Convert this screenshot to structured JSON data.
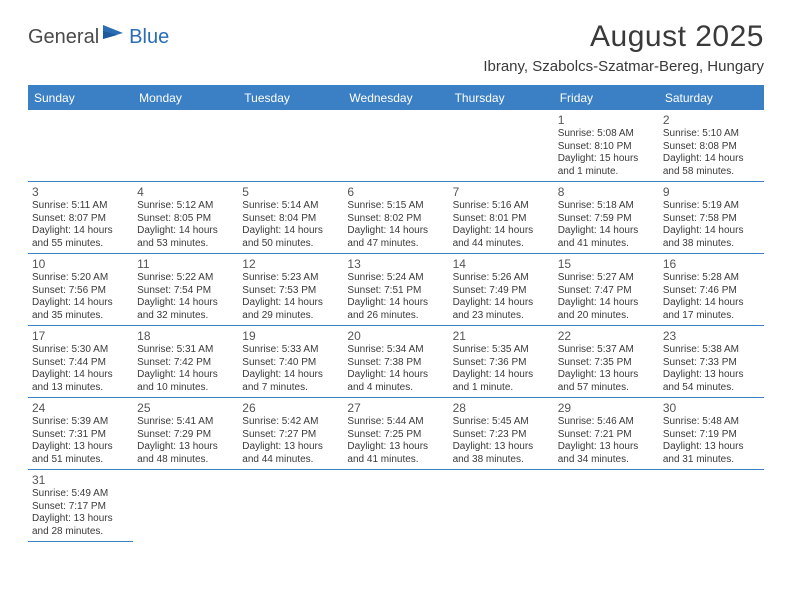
{
  "logo": {
    "general": "General",
    "blue": "Blue"
  },
  "title": "August 2025",
  "location": "Ibrany, Szabolcs-Szatmar-Bereg, Hungary",
  "colors": {
    "brand_blue": "#3b7fc4",
    "text_dark": "#3a3a3a",
    "logo_gray": "#4a4a4a",
    "logo_blue": "#2a6db5"
  },
  "day_headers": [
    "Sunday",
    "Monday",
    "Tuesday",
    "Wednesday",
    "Thursday",
    "Friday",
    "Saturday"
  ],
  "weeks": [
    [
      null,
      null,
      null,
      null,
      null,
      {
        "d": "1",
        "sr": "Sunrise: 5:08 AM",
        "ss": "Sunset: 8:10 PM",
        "dl": "Daylight: 15 hours and 1 minute."
      },
      {
        "d": "2",
        "sr": "Sunrise: 5:10 AM",
        "ss": "Sunset: 8:08 PM",
        "dl": "Daylight: 14 hours and 58 minutes."
      }
    ],
    [
      {
        "d": "3",
        "sr": "Sunrise: 5:11 AM",
        "ss": "Sunset: 8:07 PM",
        "dl": "Daylight: 14 hours and 55 minutes."
      },
      {
        "d": "4",
        "sr": "Sunrise: 5:12 AM",
        "ss": "Sunset: 8:05 PM",
        "dl": "Daylight: 14 hours and 53 minutes."
      },
      {
        "d": "5",
        "sr": "Sunrise: 5:14 AM",
        "ss": "Sunset: 8:04 PM",
        "dl": "Daylight: 14 hours and 50 minutes."
      },
      {
        "d": "6",
        "sr": "Sunrise: 5:15 AM",
        "ss": "Sunset: 8:02 PM",
        "dl": "Daylight: 14 hours and 47 minutes."
      },
      {
        "d": "7",
        "sr": "Sunrise: 5:16 AM",
        "ss": "Sunset: 8:01 PM",
        "dl": "Daylight: 14 hours and 44 minutes."
      },
      {
        "d": "8",
        "sr": "Sunrise: 5:18 AM",
        "ss": "Sunset: 7:59 PM",
        "dl": "Daylight: 14 hours and 41 minutes."
      },
      {
        "d": "9",
        "sr": "Sunrise: 5:19 AM",
        "ss": "Sunset: 7:58 PM",
        "dl": "Daylight: 14 hours and 38 minutes."
      }
    ],
    [
      {
        "d": "10",
        "sr": "Sunrise: 5:20 AM",
        "ss": "Sunset: 7:56 PM",
        "dl": "Daylight: 14 hours and 35 minutes."
      },
      {
        "d": "11",
        "sr": "Sunrise: 5:22 AM",
        "ss": "Sunset: 7:54 PM",
        "dl": "Daylight: 14 hours and 32 minutes."
      },
      {
        "d": "12",
        "sr": "Sunrise: 5:23 AM",
        "ss": "Sunset: 7:53 PM",
        "dl": "Daylight: 14 hours and 29 minutes."
      },
      {
        "d": "13",
        "sr": "Sunrise: 5:24 AM",
        "ss": "Sunset: 7:51 PM",
        "dl": "Daylight: 14 hours and 26 minutes."
      },
      {
        "d": "14",
        "sr": "Sunrise: 5:26 AM",
        "ss": "Sunset: 7:49 PM",
        "dl": "Daylight: 14 hours and 23 minutes."
      },
      {
        "d": "15",
        "sr": "Sunrise: 5:27 AM",
        "ss": "Sunset: 7:47 PM",
        "dl": "Daylight: 14 hours and 20 minutes."
      },
      {
        "d": "16",
        "sr": "Sunrise: 5:28 AM",
        "ss": "Sunset: 7:46 PM",
        "dl": "Daylight: 14 hours and 17 minutes."
      }
    ],
    [
      {
        "d": "17",
        "sr": "Sunrise: 5:30 AM",
        "ss": "Sunset: 7:44 PM",
        "dl": "Daylight: 14 hours and 13 minutes."
      },
      {
        "d": "18",
        "sr": "Sunrise: 5:31 AM",
        "ss": "Sunset: 7:42 PM",
        "dl": "Daylight: 14 hours and 10 minutes."
      },
      {
        "d": "19",
        "sr": "Sunrise: 5:33 AM",
        "ss": "Sunset: 7:40 PM",
        "dl": "Daylight: 14 hours and 7 minutes."
      },
      {
        "d": "20",
        "sr": "Sunrise: 5:34 AM",
        "ss": "Sunset: 7:38 PM",
        "dl": "Daylight: 14 hours and 4 minutes."
      },
      {
        "d": "21",
        "sr": "Sunrise: 5:35 AM",
        "ss": "Sunset: 7:36 PM",
        "dl": "Daylight: 14 hours and 1 minute."
      },
      {
        "d": "22",
        "sr": "Sunrise: 5:37 AM",
        "ss": "Sunset: 7:35 PM",
        "dl": "Daylight: 13 hours and 57 minutes."
      },
      {
        "d": "23",
        "sr": "Sunrise: 5:38 AM",
        "ss": "Sunset: 7:33 PM",
        "dl": "Daylight: 13 hours and 54 minutes."
      }
    ],
    [
      {
        "d": "24",
        "sr": "Sunrise: 5:39 AM",
        "ss": "Sunset: 7:31 PM",
        "dl": "Daylight: 13 hours and 51 minutes."
      },
      {
        "d": "25",
        "sr": "Sunrise: 5:41 AM",
        "ss": "Sunset: 7:29 PM",
        "dl": "Daylight: 13 hours and 48 minutes."
      },
      {
        "d": "26",
        "sr": "Sunrise: 5:42 AM",
        "ss": "Sunset: 7:27 PM",
        "dl": "Daylight: 13 hours and 44 minutes."
      },
      {
        "d": "27",
        "sr": "Sunrise: 5:44 AM",
        "ss": "Sunset: 7:25 PM",
        "dl": "Daylight: 13 hours and 41 minutes."
      },
      {
        "d": "28",
        "sr": "Sunrise: 5:45 AM",
        "ss": "Sunset: 7:23 PM",
        "dl": "Daylight: 13 hours and 38 minutes."
      },
      {
        "d": "29",
        "sr": "Sunrise: 5:46 AM",
        "ss": "Sunset: 7:21 PM",
        "dl": "Daylight: 13 hours and 34 minutes."
      },
      {
        "d": "30",
        "sr": "Sunrise: 5:48 AM",
        "ss": "Sunset: 7:19 PM",
        "dl": "Daylight: 13 hours and 31 minutes."
      }
    ],
    [
      {
        "d": "31",
        "sr": "Sunrise: 5:49 AM",
        "ss": "Sunset: 7:17 PM",
        "dl": "Daylight: 13 hours and 28 minutes."
      },
      null,
      null,
      null,
      null,
      null,
      null
    ]
  ]
}
